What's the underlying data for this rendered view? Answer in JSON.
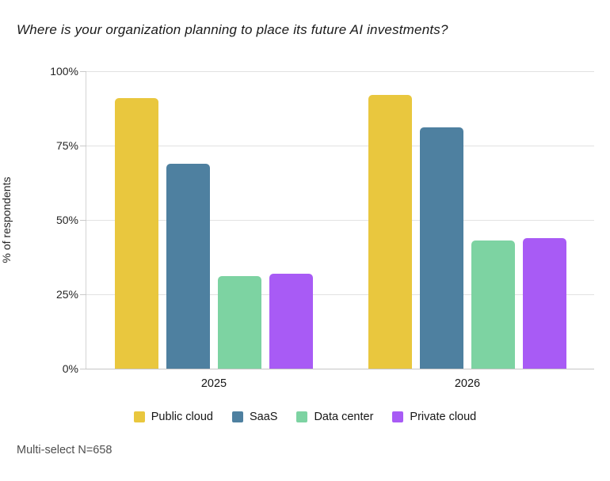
{
  "title": "Where is your organization planning to place its future AI investments?",
  "note": "Multi-select N=658",
  "colors": {
    "public_cloud": "#E9C73E",
    "saas": "#4E80A0",
    "data_center": "#7DD3A2",
    "private_cloud": "#A85BF5",
    "gridline": "#E2E2E2",
    "axis_line": "#C6C6C6",
    "text_dark": "#161616",
    "text_muted": "#4F4F4F"
  },
  "chart_data": {
    "type": "bar",
    "title": "Where is your organization planning to place its future AI investments?",
    "categories": [
      "2025",
      "2026"
    ],
    "series": [
      {
        "name": "Public cloud",
        "color": "#E9C73E",
        "values": [
          91,
          92
        ]
      },
      {
        "name": "SaaS",
        "color": "#4E80A0",
        "values": [
          69,
          81
        ]
      },
      {
        "name": "Data center",
        "color": "#7DD3A2",
        "values": [
          31,
          43
        ]
      },
      {
        "name": "Private cloud",
        "color": "#A85BF5",
        "values": [
          32,
          44
        ]
      }
    ],
    "xlabel": "",
    "ylabel": "% of respondents",
    "ylim": [
      0,
      100
    ],
    "yticks": [
      "0%",
      "25%",
      "50%",
      "75%",
      "100%"
    ],
    "grid": true,
    "legend_position": "bottom",
    "note": "Multi-select N=658"
  }
}
